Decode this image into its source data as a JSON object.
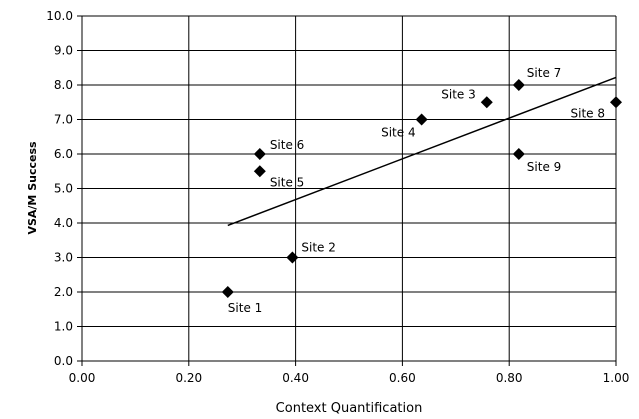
{
  "chart_data": {
    "type": "scatter",
    "title": "",
    "xlabel": "Context Quantification",
    "ylabel": "VSA/M Success",
    "xlim": [
      0.0,
      1.0
    ],
    "ylim": [
      0.0,
      10.0
    ],
    "x_ticks": [
      "0.00",
      "0.20",
      "0.40",
      "0.60",
      "0.80",
      "1.00"
    ],
    "y_ticks": [
      "0.0",
      "1.0",
      "2.0",
      "3.0",
      "4.0",
      "5.0",
      "6.0",
      "7.0",
      "8.0",
      "9.0",
      "10.0"
    ],
    "grid": true,
    "marker": "diamond",
    "points": [
      {
        "label": "Site 1",
        "x": 0.273,
        "y": 2.0
      },
      {
        "label": "Site 2",
        "x": 0.394,
        "y": 3.0
      },
      {
        "label": "Site 3",
        "x": 0.758,
        "y": 7.5
      },
      {
        "label": "Site 4",
        "x": 0.636,
        "y": 7.0
      },
      {
        "label": "Site 5",
        "x": 0.333,
        "y": 5.5
      },
      {
        "label": "Site 6",
        "x": 0.333,
        "y": 6.0
      },
      {
        "label": "Site 7",
        "x": 0.818,
        "y": 8.0
      },
      {
        "label": "Site 8",
        "x": 1.0,
        "y": 7.5
      },
      {
        "label": "Site 9",
        "x": 0.818,
        "y": 6.0
      }
    ],
    "trendline": {
      "type": "linear",
      "x": [
        0.273,
        1.0
      ],
      "y": [
        3.93,
        8.22
      ]
    }
  }
}
